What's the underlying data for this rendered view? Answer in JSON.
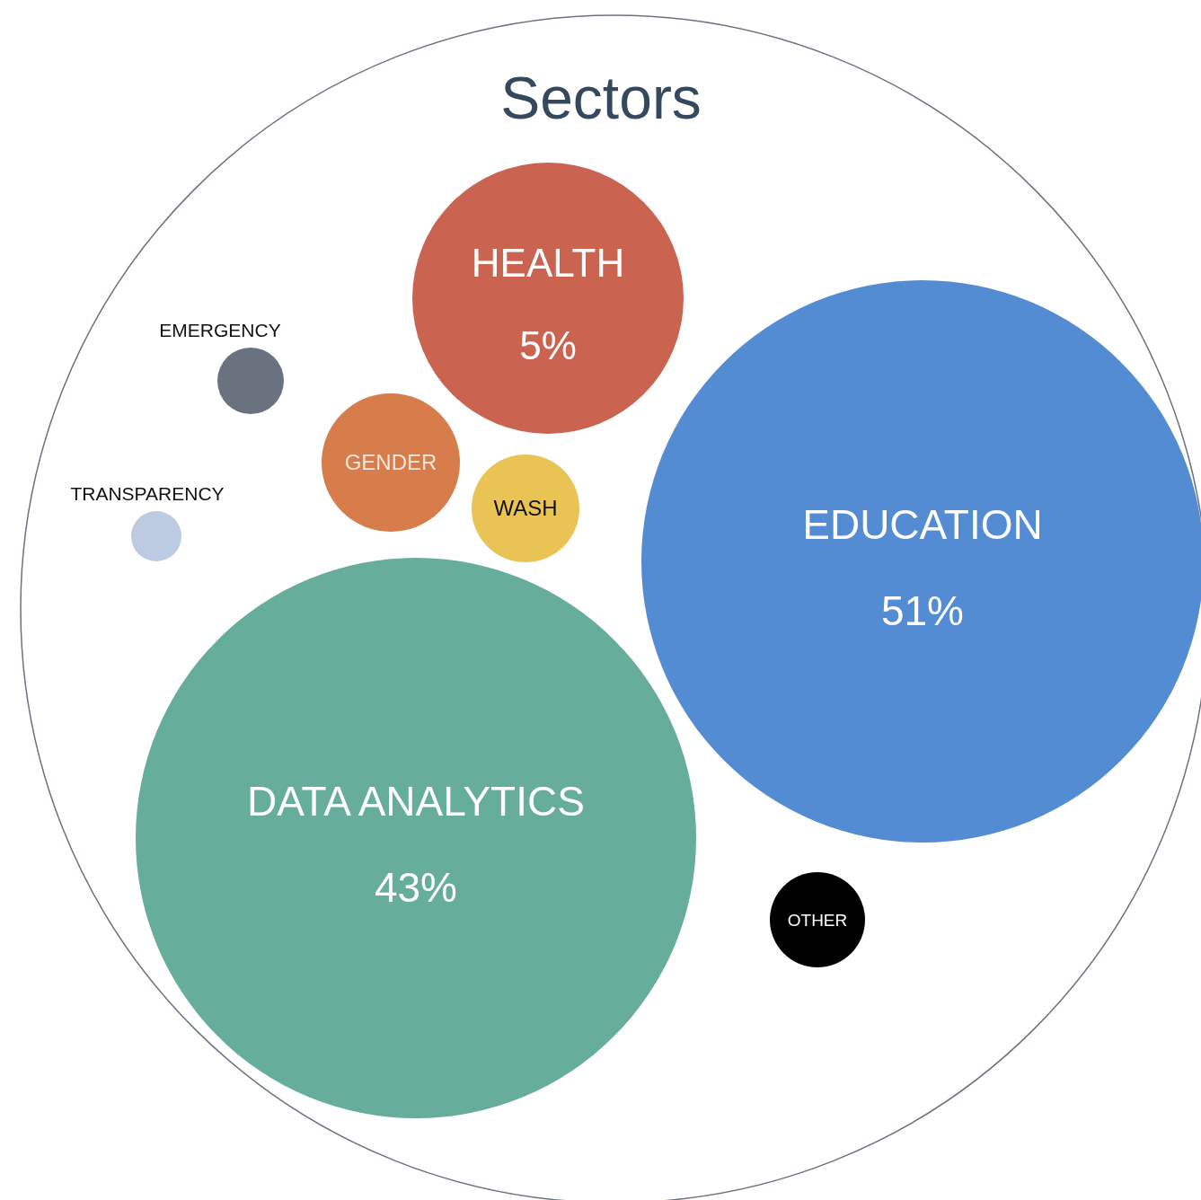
{
  "chart_data": {
    "type": "other",
    "title": "Sectors",
    "categories": [
      "HEALTH",
      "EMERGENCY",
      "GENDER",
      "TRANSPARENCY",
      "WASH",
      "EDUCATION",
      "DATA ANALYTICS",
      "OTHER"
    ],
    "values": [
      5,
      null,
      null,
      null,
      null,
      51,
      43,
      null
    ],
    "value_labels": [
      "5%",
      null,
      null,
      null,
      null,
      "51%",
      "43%",
      null
    ],
    "colors": [
      "#cb6351",
      "#6a7280",
      "#d77d4b",
      "#bccbe1",
      "#e9c455",
      "#548cd4",
      "#66ad9b",
      "#000000"
    ]
  }
}
